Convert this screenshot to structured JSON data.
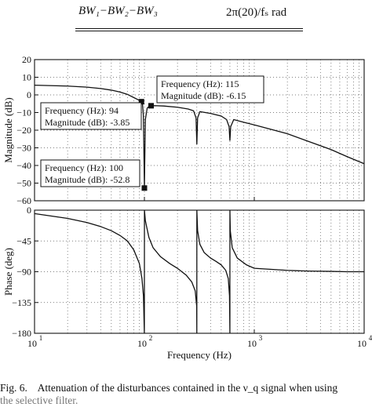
{
  "table_fragment": {
    "row_left": "BW₁−BW₂−BW₃",
    "row_right": "2π(20)/fₛ rad"
  },
  "caption": {
    "label": "Fig. 6.",
    "text": "Attenuation of the disturbances contained in the ν_q signal when using",
    "continuation": "the selective filter."
  },
  "chart_data": [
    {
      "type": "line",
      "panel": "magnitude",
      "xlabel": "",
      "ylabel": "Magnitude (dB)",
      "xscale": "log",
      "xlim": [
        10,
        10000
      ],
      "ylim": [
        -60,
        20
      ],
      "yticks": [
        20,
        10,
        0,
        -10,
        -20,
        -30,
        -40,
        -50,
        -60
      ],
      "grid": true,
      "series": [
        {
          "x": [
            10,
            20,
            30,
            40,
            50,
            60,
            70,
            80,
            88,
            92,
            94,
            96,
            98,
            100,
            102,
            106,
            110,
            115,
            125,
            150,
            200,
            250,
            280,
            295,
            300,
            305,
            320,
            400,
            500,
            560,
            590,
            600,
            610,
            650,
            800,
            1000,
            2000,
            3000,
            5000,
            7000,
            10000
          ],
          "y": [
            5.5,
            5,
            4.4,
            3.6,
            2.7,
            1.6,
            0.3,
            -1.5,
            -2.8,
            -3.5,
            -3.85,
            -5,
            -12,
            -52.8,
            -14,
            -7.5,
            -6.5,
            -6.15,
            -6.1,
            -6.3,
            -7,
            -8,
            -9,
            -13,
            -28,
            -13,
            -9.5,
            -10.5,
            -12,
            -14,
            -18,
            -26,
            -18,
            -14,
            -15.5,
            -17,
            -22,
            -26,
            -31,
            -35,
            -39
          ]
        }
      ],
      "annotations": [
        {
          "freq_label": "Frequency (Hz): 115",
          "mag_label": "Magnitude (dB): -6.15",
          "x": 115,
          "y": -6.15
        },
        {
          "freq_label": "Frequency (Hz): 94",
          "mag_label": "Magnitude (dB): -3.85",
          "x": 94,
          "y": -3.85
        },
        {
          "freq_label": "Frequency (Hz): 100",
          "mag_label": "Magnitude (dB): -52.8",
          "x": 100,
          "y": -52.8
        }
      ]
    },
    {
      "type": "line",
      "panel": "phase",
      "xlabel": "Frequency (Hz)",
      "ylabel": "Phase (deg)",
      "xscale": "log",
      "xlim": [
        10,
        10000
      ],
      "ylim": [
        -180,
        0
      ],
      "yticks": [
        0,
        -45,
        -90,
        -135,
        -180
      ],
      "xticks": [
        10,
        100,
        1000,
        10000
      ],
      "xtick_labels": [
        [
          "10",
          "1"
        ],
        [
          "10",
          "2"
        ],
        [
          "10",
          "3"
        ],
        [
          "10",
          "4"
        ]
      ],
      "grid": true,
      "series": [
        {
          "x": [
            10,
            20,
            30,
            40,
            50,
            60,
            70,
            80,
            90,
            95,
            98,
            99.9,
            100.1,
            102,
            105,
            110,
            120,
            140,
            170,
            200,
            240,
            270,
            290,
            299,
            299.9,
            300.1,
            305,
            320,
            350,
            400,
            450,
            500,
            550,
            580,
            595,
            599.9,
            600.1,
            605,
            630,
            700,
            850,
            1000,
            2000,
            3000,
            5000,
            7000,
            10000
          ],
          "y": [
            -5,
            -12,
            -18,
            -24,
            -30,
            -37,
            -45,
            -58,
            -78,
            -100,
            -125,
            -180,
            0,
            -15,
            -25,
            -40,
            -55,
            -68,
            -78,
            -85,
            -95,
            -105,
            -118,
            -140,
            -180,
            0,
            -30,
            -50,
            -62,
            -70,
            -75,
            -80,
            -88,
            -100,
            -125,
            -180,
            0,
            -30,
            -55,
            -70,
            -80,
            -85,
            -88,
            -89,
            -89.5,
            -90,
            -90
          ]
        }
      ]
    }
  ]
}
